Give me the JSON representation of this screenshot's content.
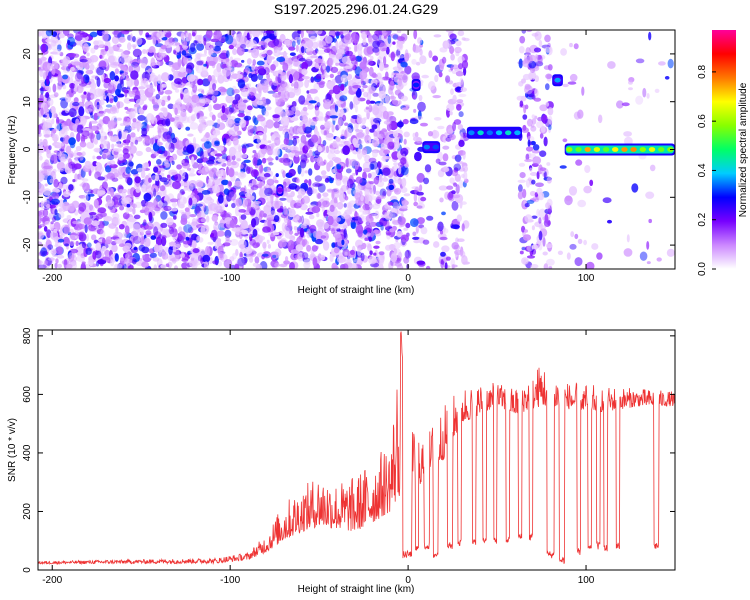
{
  "title": "S197.2025.296.01.24.G29",
  "chart_data": [
    {
      "type": "heatmap",
      "xlabel": "Height of straight line (km)",
      "ylabel": "Frequency (Hz)",
      "xlim": [
        -208,
        150
      ],
      "ylim": [
        -25,
        25
      ],
      "xticks": [
        -200,
        -100,
        0,
        100
      ],
      "yticks": [
        -20,
        -10,
        0,
        10,
        20
      ],
      "grid": false,
      "colorbar": {
        "label": "Normalized spectral amplitude",
        "ticks": [
          0.0,
          0.2,
          0.4,
          0.6,
          0.8
        ],
        "tick_labels": [
          "0.0",
          "0.2",
          "0.4",
          "0.6",
          "0.8"
        ],
        "range": [
          0,
          0.97
        ],
        "colormap": [
          "#ffffff",
          "#cc88ff",
          "#7700ff",
          "#0000ff",
          "#00ccff",
          "#00ff66",
          "#88ff00",
          "#ffff00",
          "#ff7700",
          "#ff0000",
          "#ff0099"
        ]
      },
      "noise_columns": [
        {
          "x0": -208,
          "x1": 0,
          "density": 1.0
        },
        {
          "x0": 0,
          "x1": 3,
          "density": 0.0
        },
        {
          "x0": 3,
          "x1": 8,
          "density": 0.6
        },
        {
          "x0": 8,
          "x1": 18,
          "density": 0.15
        },
        {
          "x0": 18,
          "x1": 33,
          "density": 0.55
        },
        {
          "x0": 33,
          "x1": 63,
          "density": 0.0
        },
        {
          "x0": 63,
          "x1": 80,
          "density": 0.6
        },
        {
          "x0": 80,
          "x1": 85,
          "density": 0.0
        },
        {
          "x0": 85,
          "x1": 150,
          "density": 0.05
        }
      ],
      "signal_segments": [
        {
          "x0": -74,
          "x1": -70,
          "freq": -8.5,
          "amp": 0.25
        },
        {
          "x0": 2,
          "x1": 7,
          "freq": 13.5,
          "amp": 0.3
        },
        {
          "x0": 8,
          "x1": 18,
          "freq": 0.5,
          "amp": 0.4
        },
        {
          "x0": 33,
          "x1": 64,
          "freq": 3.5,
          "amp": 0.45
        },
        {
          "x0": 81,
          "x1": 87,
          "freq": 14.5,
          "amp": 0.4
        },
        {
          "x0": 88,
          "x1": 150,
          "freq": 0.0,
          "amp": 0.75
        }
      ]
    },
    {
      "type": "line",
      "xlabel": "Height of straight line (km)",
      "ylabel": "SNR (10 * v/v)",
      "xlim": [
        -208,
        150
      ],
      "ylim": [
        0,
        820
      ],
      "xticks": [
        -200,
        -100,
        0,
        100
      ],
      "yticks": [
        0,
        200,
        400,
        600,
        800
      ],
      "grid": false,
      "series": [
        {
          "color": "#ee3333",
          "envelope": [
            {
              "x": -208,
              "base": 20,
              "peak": 30
            },
            {
              "x": -110,
              "base": 22,
              "peak": 40
            },
            {
              "x": -90,
              "base": 35,
              "peak": 60
            },
            {
              "x": -80,
              "base": 60,
              "peak": 120
            },
            {
              "x": -70,
              "base": 100,
              "peak": 230
            },
            {
              "x": -60,
              "base": 130,
              "peak": 280
            },
            {
              "x": -50,
              "base": 150,
              "peak": 330
            },
            {
              "x": -40,
              "base": 140,
              "peak": 300
            },
            {
              "x": -30,
              "base": 130,
              "peak": 320
            },
            {
              "x": -20,
              "base": 160,
              "peak": 380
            },
            {
              "x": -10,
              "base": 200,
              "peak": 440
            },
            {
              "x": -4,
              "base": 260,
              "peak": 820
            },
            {
              "x": 0,
              "base": 280,
              "peak": 480
            },
            {
              "x": 10,
              "base": 300,
              "peak": 470
            },
            {
              "x": 20,
              "base": 380,
              "peak": 560
            },
            {
              "x": 30,
              "base": 500,
              "peak": 630
            },
            {
              "x": 50,
              "base": 560,
              "peak": 640
            },
            {
              "x": 60,
              "base": 530,
              "peak": 620
            },
            {
              "x": 75,
              "base": 560,
              "peak": 710
            },
            {
              "x": 90,
              "base": 550,
              "peak": 640
            },
            {
              "x": 110,
              "base": 540,
              "peak": 630
            },
            {
              "x": 130,
              "base": 560,
              "peak": 620
            },
            {
              "x": 150,
              "base": 560,
              "peak": 610
            }
          ],
          "dropouts": [
            {
              "x0": -3,
              "x1": 2,
              "level": 40
            },
            {
              "x0": 4,
              "x1": 6,
              "level": 60
            },
            {
              "x0": 9,
              "x1": 12,
              "level": 70
            },
            {
              "x0": 14,
              "x1": 17,
              "level": 40
            },
            {
              "x0": 22,
              "x1": 25,
              "level": 70
            },
            {
              "x0": 28,
              "x1": 30,
              "level": 80
            },
            {
              "x0": 36,
              "x1": 38,
              "level": 80
            },
            {
              "x0": 42,
              "x1": 44,
              "level": 90
            },
            {
              "x0": 48,
              "x1": 50,
              "level": 90
            },
            {
              "x0": 55,
              "x1": 57,
              "level": 90
            },
            {
              "x0": 62,
              "x1": 64,
              "level": 100
            },
            {
              "x0": 68,
              "x1": 70,
              "level": 100
            },
            {
              "x0": 78,
              "x1": 82,
              "level": 40
            },
            {
              "x0": 85,
              "x1": 88,
              "level": 20
            },
            {
              "x0": 95,
              "x1": 97,
              "level": 50
            },
            {
              "x0": 101,
              "x1": 103,
              "level": 60
            },
            {
              "x0": 106,
              "x1": 108,
              "level": 70
            },
            {
              "x0": 110,
              "x1": 112,
              "level": 60
            },
            {
              "x0": 117,
              "x1": 119,
              "level": 70
            },
            {
              "x0": 138,
              "x1": 141,
              "level": 70
            }
          ]
        }
      ]
    }
  ]
}
